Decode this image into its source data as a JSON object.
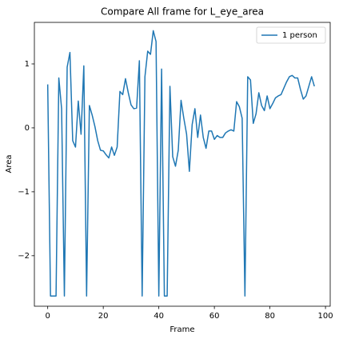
{
  "chart_data": {
    "type": "line",
    "title": "Compare All frame for L_eye_area",
    "xlabel": "Frame",
    "ylabel": "Area",
    "x": [
      0,
      1,
      2,
      3,
      4,
      5,
      6,
      7,
      8,
      9,
      10,
      11,
      12,
      13,
      14,
      15,
      16,
      17,
      18,
      19,
      20,
      21,
      22,
      23,
      24,
      25,
      26,
      27,
      28,
      29,
      30,
      31,
      32,
      33,
      34,
      35,
      36,
      37,
      38,
      39,
      40,
      41,
      42,
      43,
      44,
      45,
      46,
      47,
      48,
      49,
      50,
      51,
      52,
      53,
      54,
      55,
      56,
      57,
      58,
      59,
      60,
      61,
      62,
      63,
      64,
      65,
      66,
      67,
      68,
      69,
      70,
      71,
      72,
      73,
      74,
      75,
      76,
      77,
      78,
      79,
      80,
      81,
      82,
      83,
      84,
      85,
      86,
      87,
      88,
      89,
      90,
      91,
      92,
      93,
      94,
      95,
      96
    ],
    "series": [
      {
        "name": "1 person",
        "color": "#1f77b4",
        "values": [
          0.68,
          -2.63,
          -2.63,
          -2.63,
          0.78,
          0.3,
          -2.63,
          0.95,
          1.18,
          -0.2,
          -0.3,
          0.42,
          -0.1,
          0.97,
          -2.63,
          0.35,
          0.2,
          0.02,
          -0.2,
          -0.35,
          -0.36,
          -0.42,
          -0.47,
          -0.3,
          -0.43,
          -0.3,
          0.57,
          0.52,
          0.77,
          0.55,
          0.36,
          0.3,
          0.31,
          1.05,
          -2.63,
          0.8,
          1.2,
          1.15,
          1.52,
          1.35,
          -2.63,
          0.92,
          -2.63,
          -2.63,
          0.65,
          -0.45,
          -0.6,
          -0.35,
          0.43,
          0.15,
          -0.1,
          -0.68,
          0.05,
          0.3,
          -0.15,
          0.2,
          -0.15,
          -0.32,
          -0.05,
          -0.05,
          -0.18,
          -0.12,
          -0.15,
          -0.15,
          -0.08,
          -0.05,
          -0.03,
          -0.05,
          0.41,
          0.33,
          0.15,
          -2.63,
          0.8,
          0.75,
          0.07,
          0.22,
          0.55,
          0.35,
          0.27,
          0.5,
          0.3,
          0.38,
          0.47,
          0.5,
          0.52,
          0.62,
          0.72,
          0.8,
          0.82,
          0.78,
          0.78,
          0.6,
          0.45,
          0.5,
          0.65,
          0.8,
          0.65
        ]
      }
    ],
    "xlim": [
      -4.8,
      101.7
    ],
    "ylim": [
      -2.79,
      1.65
    ],
    "xticks": [
      0,
      20,
      40,
      60,
      80,
      100
    ],
    "yticks": [
      {
        "value": -2,
        "label": "−2"
      },
      {
        "value": -1,
        "label": "−1"
      },
      0,
      1
    ],
    "legend": "upper right"
  }
}
